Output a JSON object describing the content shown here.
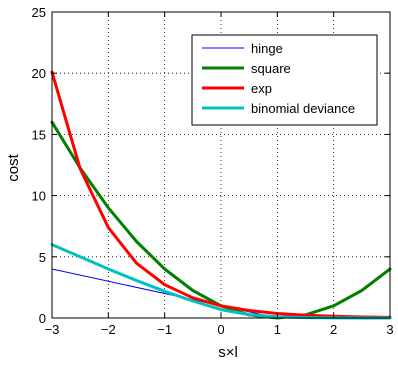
{
  "chart_data": {
    "type": "line",
    "title": "",
    "xlabel": "s×l",
    "ylabel": "cost",
    "xlim": [
      -3,
      3
    ],
    "ylim": [
      0,
      25
    ],
    "x_ticks": [
      -3,
      -2,
      -1,
      0,
      1,
      2,
      3
    ],
    "y_ticks": [
      0,
      5,
      10,
      15,
      20,
      25
    ],
    "x_tick_labels": [
      "−3",
      "−2",
      "−1",
      "0",
      "1",
      "2",
      "3"
    ],
    "y_tick_labels": [
      "0",
      "5",
      "10",
      "15",
      "20",
      "25"
    ],
    "grid": true,
    "grid_style": "dotted",
    "legend_position": "top-right",
    "series": [
      {
        "name": "hinge",
        "color": "#0000ff",
        "line_width": "thin",
        "x": [
          -3,
          1,
          3
        ],
        "y": [
          4,
          0,
          0
        ]
      },
      {
        "name": "square",
        "color": "#008000",
        "line_width": "thick",
        "x": [
          -3,
          -2.5,
          -2,
          -1.5,
          -1,
          -0.5,
          0,
          0.5,
          1,
          1.5,
          2,
          2.5,
          3
        ],
        "y": [
          16,
          12.25,
          9,
          6.25,
          4,
          2.25,
          1,
          0.25,
          0,
          0.25,
          1,
          2.25,
          4
        ]
      },
      {
        "name": "exp",
        "color": "#ff0000",
        "line_width": "thick",
        "x": [
          -3,
          -2.5,
          -2,
          -1.5,
          -1,
          -0.5,
          0,
          0.5,
          1,
          1.5,
          2,
          2.5,
          3
        ],
        "y": [
          20.09,
          12.18,
          7.39,
          4.48,
          2.72,
          1.65,
          1,
          0.61,
          0.37,
          0.22,
          0.14,
          0.08,
          0.05
        ]
      },
      {
        "name": "binomial deviance",
        "color": "#00c0c0",
        "line_width": "thick",
        "x": [
          -3,
          -2.5,
          -2,
          -1.5,
          -1,
          -0.5,
          0,
          0.5,
          1,
          1.5,
          2,
          2.5,
          3
        ],
        "y": [
          6,
          5,
          4,
          3.06,
          2.18,
          1.39,
          0.69,
          0.28,
          0.09,
          0.03,
          0.01,
          0,
          0
        ]
      }
    ]
  }
}
